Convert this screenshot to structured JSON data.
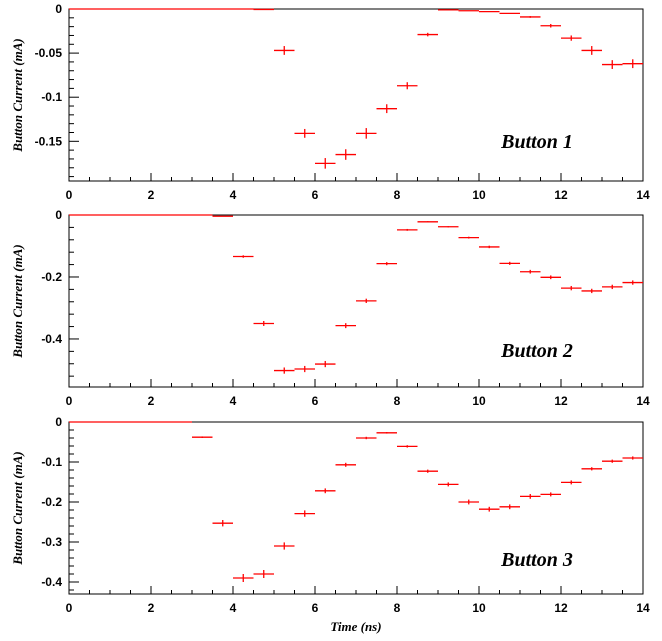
{
  "chart_data": [
    {
      "type": "scatter",
      "title": "",
      "annotation": "Button 1",
      "xlabel": "",
      "ylabel": "Button Current (mA)",
      "xlim": [
        0,
        14
      ],
      "ylim": [
        -0.195,
        0
      ],
      "xticks": [
        0,
        2,
        4,
        6,
        8,
        10,
        12,
        14
      ],
      "xtick_labels": [
        "0",
        "2",
        "4",
        "6",
        "8",
        "10",
        "12",
        "14"
      ],
      "yticks": [
        0,
        -0.05,
        -0.1,
        -0.15
      ],
      "ytick_labels": [
        "0",
        "-0.05",
        "-0.1",
        "-0.15"
      ],
      "series": [
        {
          "color": "#ff0000",
          "x_halfwidth": 0.25,
          "x": [
            0.25,
            0.75,
            1.25,
            1.75,
            2.25,
            2.75,
            3.25,
            3.75,
            4.25,
            4.75,
            5.25,
            5.75,
            6.25,
            6.75,
            7.25,
            7.75,
            8.25,
            8.75,
            9.25,
            9.75,
            10.25,
            10.75,
            11.25,
            11.75,
            12.25,
            12.75,
            13.25,
            13.75
          ],
          "y": [
            0,
            0,
            0,
            0,
            0,
            0,
            0,
            0,
            0,
            -0.0005,
            -0.047,
            -0.141,
            -0.175,
            -0.165,
            -0.141,
            -0.113,
            -0.087,
            -0.029,
            -0.001,
            -0.002,
            -0.003,
            -0.005,
            -0.009,
            -0.019,
            -0.033,
            -0.047,
            -0.063,
            -0.062
          ],
          "y_err": [
            0,
            0,
            0,
            0,
            0,
            0,
            0,
            0,
            0,
            0,
            0.005,
            0.005,
            0.006,
            0.006,
            0.006,
            0.005,
            0.004,
            0.002,
            0,
            0,
            0,
            0,
            0.001,
            0.002,
            0.003,
            0.005,
            0.005,
            0.005
          ]
        }
      ]
    },
    {
      "type": "scatter",
      "title": "",
      "annotation": "Button 2",
      "xlabel": "",
      "ylabel": "Button Current (mA)",
      "xlim": [
        0,
        14
      ],
      "ylim": [
        -0.555,
        0
      ],
      "xticks": [
        0,
        2,
        4,
        6,
        8,
        10,
        12,
        14
      ],
      "xtick_labels": [
        "0",
        "2",
        "4",
        "6",
        "8",
        "10",
        "12",
        "14"
      ],
      "yticks": [
        0,
        -0.2,
        -0.4
      ],
      "ytick_labels": [
        "0",
        "-0.2",
        "-0.4"
      ],
      "series": [
        {
          "color": "#ff0000",
          "x_halfwidth": 0.25,
          "x": [
            0.25,
            0.75,
            1.25,
            1.75,
            2.25,
            2.75,
            3.25,
            3.75,
            4.25,
            4.75,
            5.25,
            5.75,
            6.25,
            6.75,
            7.25,
            7.75,
            8.25,
            8.75,
            9.25,
            9.75,
            10.25,
            10.75,
            11.25,
            11.75,
            12.25,
            12.75,
            13.25,
            13.75
          ],
          "y": [
            0,
            0,
            0,
            0,
            0,
            0,
            0,
            -0.004,
            -0.134,
            -0.35,
            -0.502,
            -0.497,
            -0.481,
            -0.357,
            -0.277,
            -0.157,
            -0.048,
            -0.022,
            -0.038,
            -0.073,
            -0.103,
            -0.156,
            -0.183,
            -0.201,
            -0.236,
            -0.245,
            -0.232,
            -0.218
          ],
          "y_err": [
            0,
            0,
            0,
            0,
            0,
            0,
            0,
            0,
            0.004,
            0.008,
            0.01,
            0.01,
            0.01,
            0.008,
            0.007,
            0.005,
            0.003,
            0.002,
            0.002,
            0.003,
            0.004,
            0.005,
            0.006,
            0.006,
            0.007,
            0.007,
            0.007,
            0.007
          ]
        }
      ]
    },
    {
      "type": "scatter",
      "title": "",
      "annotation": "Button 3",
      "xlabel": "Time (ns)",
      "ylabel": "Button Current (mA)",
      "xlim": [
        0,
        14
      ],
      "ylim": [
        -0.43,
        0
      ],
      "xticks": [
        0,
        2,
        4,
        6,
        8,
        10,
        12,
        14
      ],
      "xtick_labels": [
        "0",
        "2",
        "4",
        "6",
        "8",
        "10",
        "12",
        "14"
      ],
      "yticks": [
        0,
        -0.1,
        -0.2,
        -0.3,
        -0.4
      ],
      "ytick_labels": [
        "0",
        "-0.1",
        "-0.2",
        "-0.3",
        "-0.4"
      ],
      "series": [
        {
          "color": "#ff0000",
          "x_halfwidth": 0.25,
          "x": [
            0.25,
            0.75,
            1.25,
            1.75,
            2.25,
            2.75,
            3.25,
            3.75,
            4.25,
            4.75,
            5.25,
            5.75,
            6.25,
            6.75,
            7.25,
            7.75,
            8.25,
            8.75,
            9.25,
            9.75,
            10.25,
            10.75,
            11.25,
            11.75,
            12.25,
            12.75,
            13.25,
            13.75
          ],
          "y": [
            0,
            0,
            0,
            0,
            0,
            0,
            -0.038,
            -0.253,
            -0.39,
            -0.38,
            -0.31,
            -0.229,
            -0.172,
            -0.107,
            -0.04,
            -0.027,
            -0.061,
            -0.123,
            -0.156,
            -0.2,
            -0.218,
            -0.212,
            -0.186,
            -0.181,
            -0.151,
            -0.117,
            -0.098,
            -0.09
          ],
          "y_err": [
            0,
            0,
            0,
            0,
            0,
            0,
            0.002,
            0.008,
            0.01,
            0.01,
            0.009,
            0.008,
            0.006,
            0.005,
            0.003,
            0.002,
            0.003,
            0.004,
            0.005,
            0.006,
            0.006,
            0.006,
            0.006,
            0.005,
            0.005,
            0.004,
            0.004,
            0.004
          ]
        }
      ]
    }
  ]
}
